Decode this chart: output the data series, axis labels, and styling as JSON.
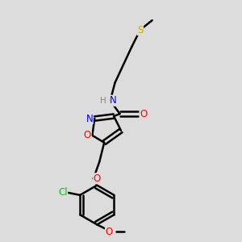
{
  "bg_color": "#dcdcdc",
  "bond_color": "#000000",
  "bond_width": 1.8,
  "atom_colors": {
    "N": "#0000ff",
    "O": "#ff0000",
    "S": "#ccaa00",
    "Cl": "#00cc00",
    "C": "#000000",
    "H": "#888888"
  },
  "font_size": 7.5,
  "figsize": [
    3.0,
    3.0
  ],
  "dpi": 100
}
